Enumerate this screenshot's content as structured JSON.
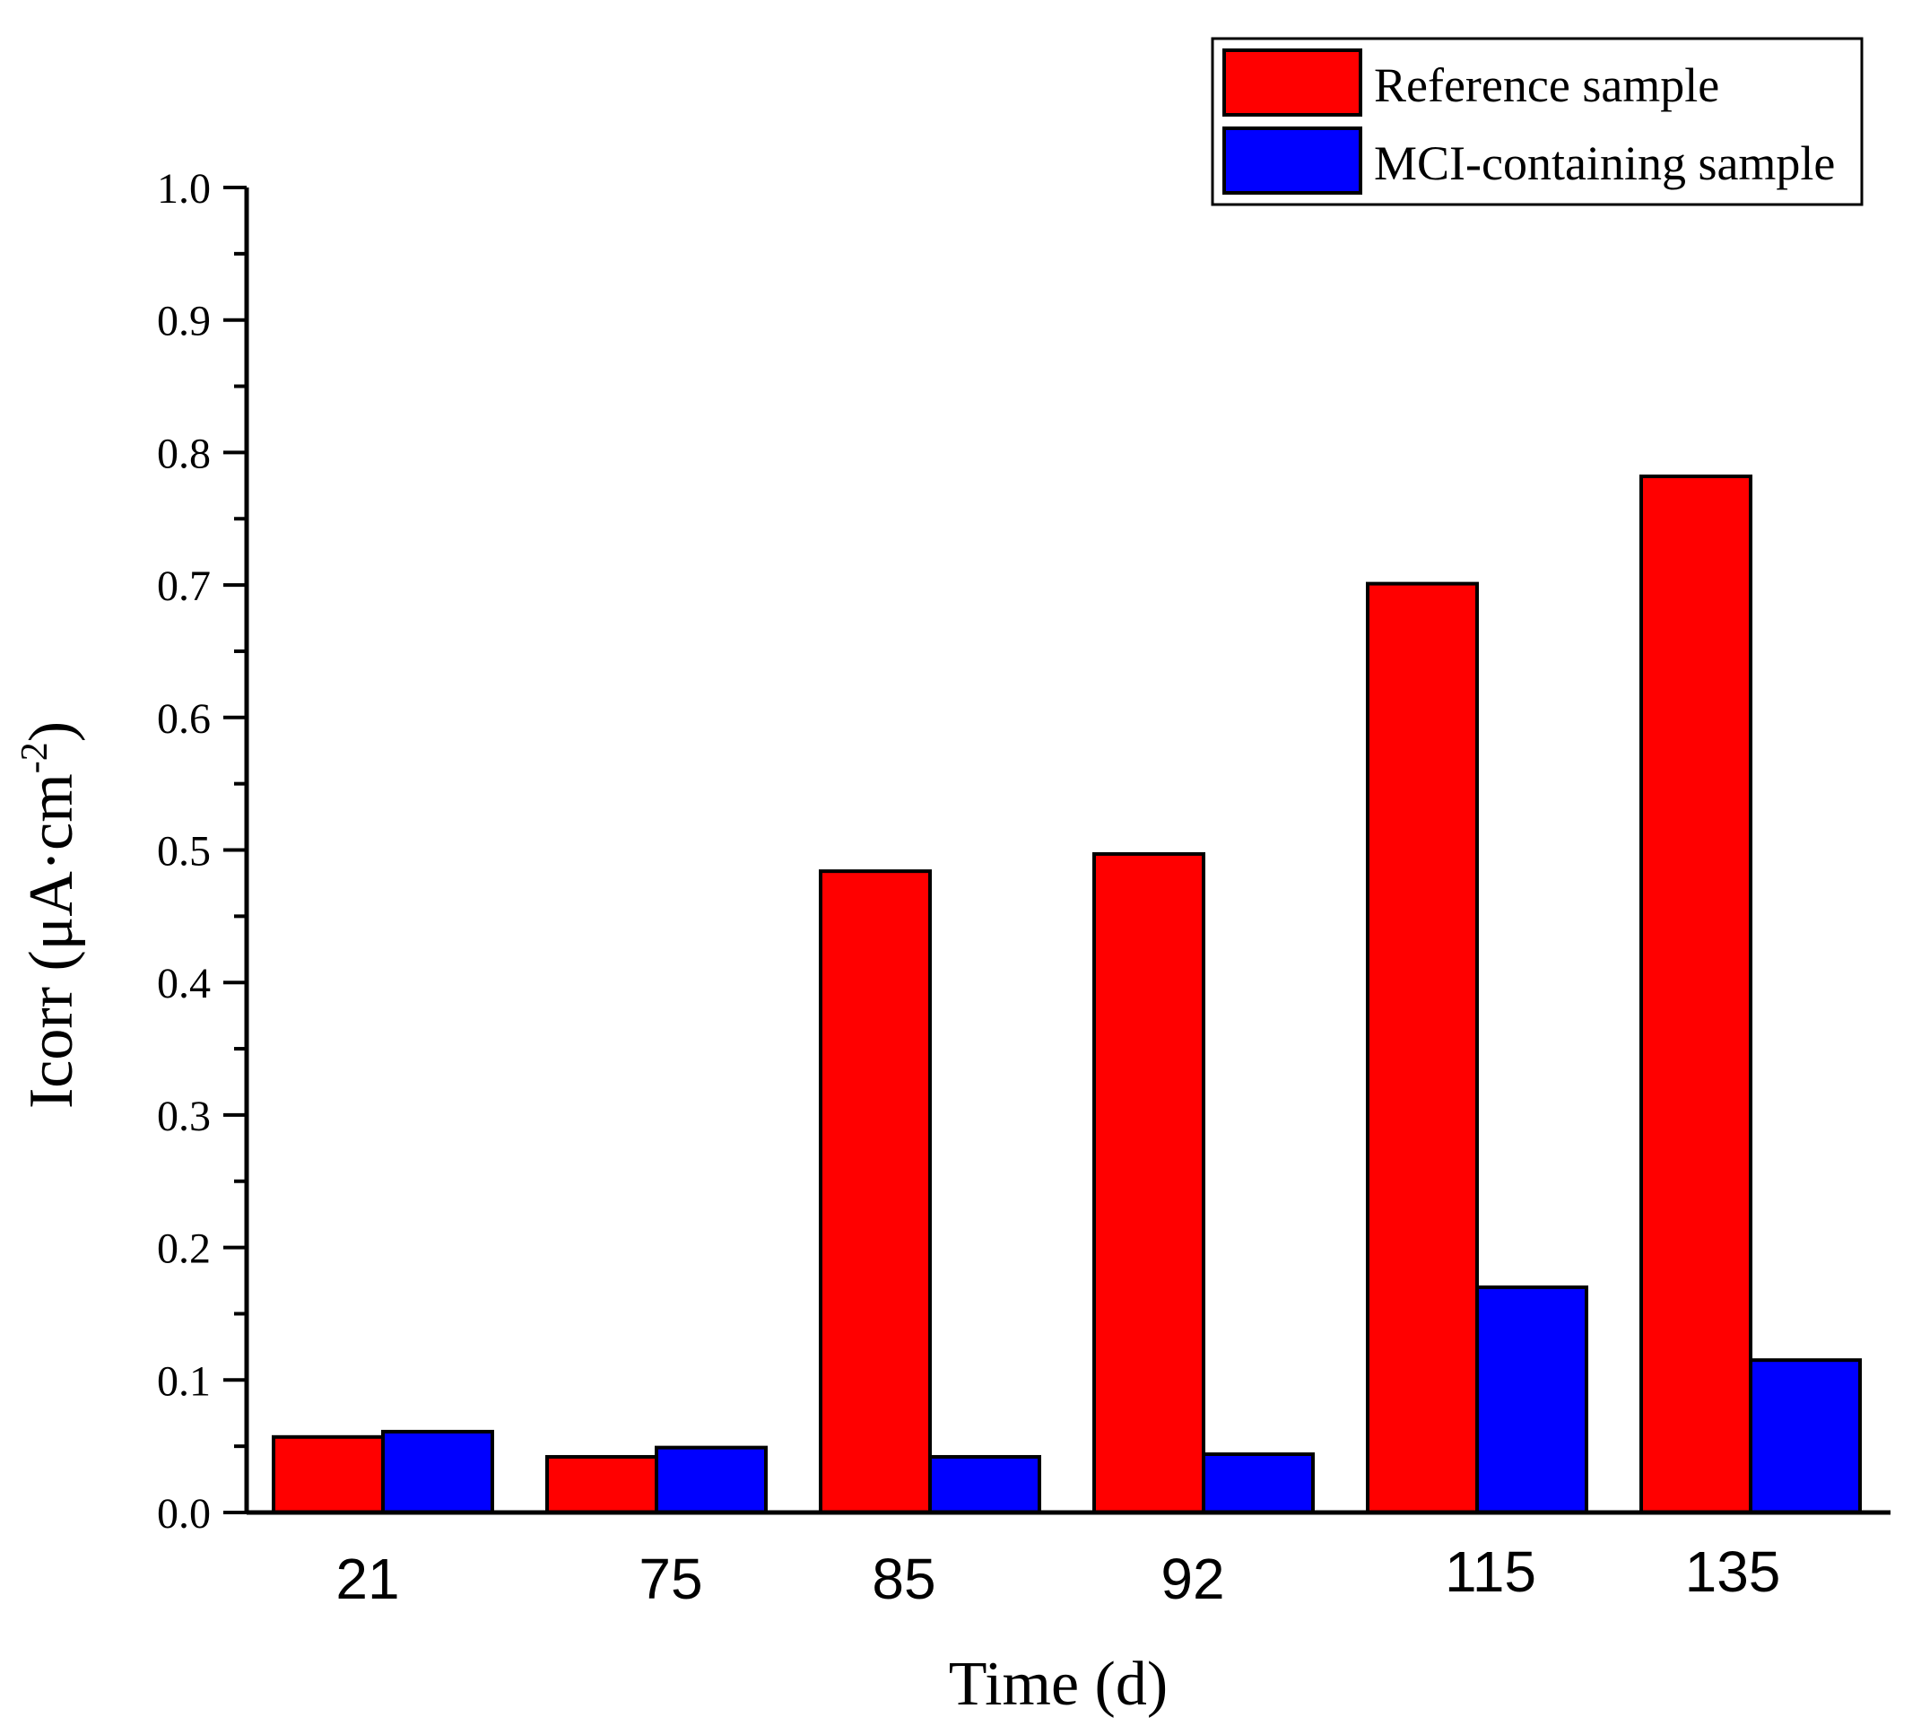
{
  "chart_data": {
    "type": "bar",
    "title": "",
    "xlabel": "Time (d)",
    "ylabel": {
      "text": "Icorr (μA·cm",
      "superscript": "-2",
      "close": ")"
    },
    "ylim": [
      0,
      1.0
    ],
    "y_major_ticks": [
      0.0,
      0.1,
      0.2,
      0.3,
      0.4,
      0.5,
      0.6,
      0.7,
      0.8,
      0.9,
      1.0
    ],
    "y_minor_step": 0.05,
    "y_tick_labels": [
      "0.0",
      "0.1",
      "0.2",
      "0.3",
      "0.4",
      "0.5",
      "0.6",
      "0.7",
      "0.8",
      "0.9",
      "1.0"
    ],
    "categories": [
      "21",
      "75",
      "85",
      "92",
      "115",
      "135"
    ],
    "series": [
      {
        "name": "Reference sample",
        "color": "#ff0000",
        "values": [
          0.057,
          0.042,
          0.484,
          0.497,
          0.701,
          0.782
        ]
      },
      {
        "name": "MCI-containing sample",
        "color": "#0000ff",
        "values": [
          0.061,
          0.049,
          0.042,
          0.044,
          0.17,
          0.115
        ]
      }
    ],
    "legend": {
      "position": "top-right"
    }
  }
}
